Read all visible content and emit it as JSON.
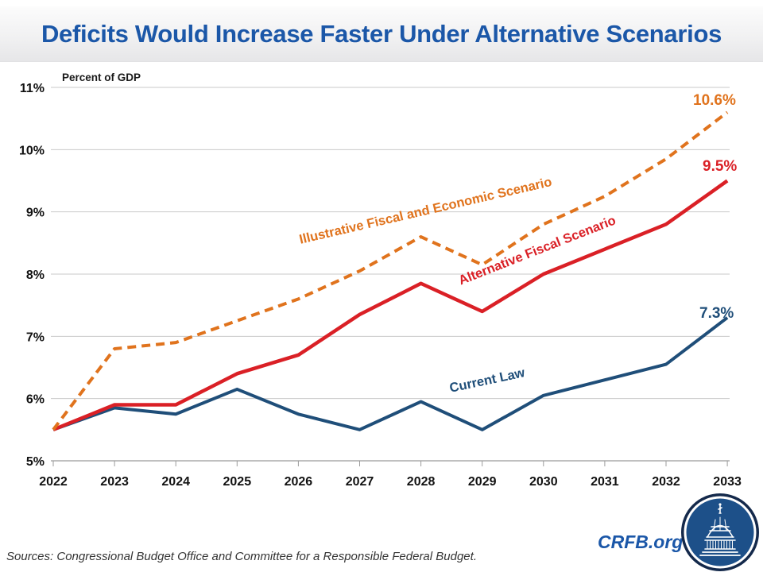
{
  "header": {
    "title": "Deficits Would Increase Faster Under Alternative Scenarios"
  },
  "chart_data": {
    "type": "line",
    "title": "Deficits Would Increase Faster Under Alternative Scenarios",
    "unit": "Percent of GDP",
    "xlabel": "",
    "ylabel": "Percent of GDP",
    "x": [
      "2022",
      "2023",
      "2024",
      "2025",
      "2026",
      "2027",
      "2028",
      "2029",
      "2030",
      "2031",
      "2032",
      "2033"
    ],
    "ylim": [
      5,
      11
    ],
    "grid": true,
    "legend": "inline-labels",
    "yticks": [
      {
        "v": 5,
        "label": "5%"
      },
      {
        "v": 6,
        "label": "6%"
      },
      {
        "v": 7,
        "label": "7%"
      },
      {
        "v": 8,
        "label": "8%"
      },
      {
        "v": 9,
        "label": "9%"
      },
      {
        "v": 10,
        "label": "10%"
      },
      {
        "v": 11,
        "label": "11%"
      }
    ],
    "series": [
      {
        "id": "illustrative",
        "name": "Illustrative Fiscal and Economic Scenario",
        "color": "#e0731d",
        "style": "dashed",
        "width": 4,
        "end_label": "10.6%",
        "values": [
          5.5,
          6.8,
          6.9,
          7.25,
          7.6,
          8.05,
          8.6,
          8.15,
          8.8,
          9.25,
          9.85,
          10.6
        ]
      },
      {
        "id": "alternative",
        "name": "Alternative Fiscal Scenario",
        "color": "#da2026",
        "style": "solid",
        "width": 4.5,
        "end_label": "9.5%",
        "values": [
          5.5,
          5.9,
          5.9,
          6.4,
          6.7,
          7.35,
          7.85,
          7.4,
          8.0,
          8.4,
          8.8,
          9.5
        ]
      },
      {
        "id": "current-law",
        "name": "Current Law",
        "color": "#1f4e79",
        "style": "solid",
        "width": 4,
        "end_label": "7.3%",
        "values": [
          5.5,
          5.85,
          5.75,
          6.15,
          5.75,
          5.5,
          5.95,
          5.5,
          6.05,
          6.3,
          6.55,
          7.3
        ]
      }
    ]
  },
  "footer": {
    "sources": "Sources: Congressional Budget Office and Committee for a Responsible Federal Budget.",
    "brand": "CRFB.org",
    "logo": "capitol-dome-logo"
  }
}
